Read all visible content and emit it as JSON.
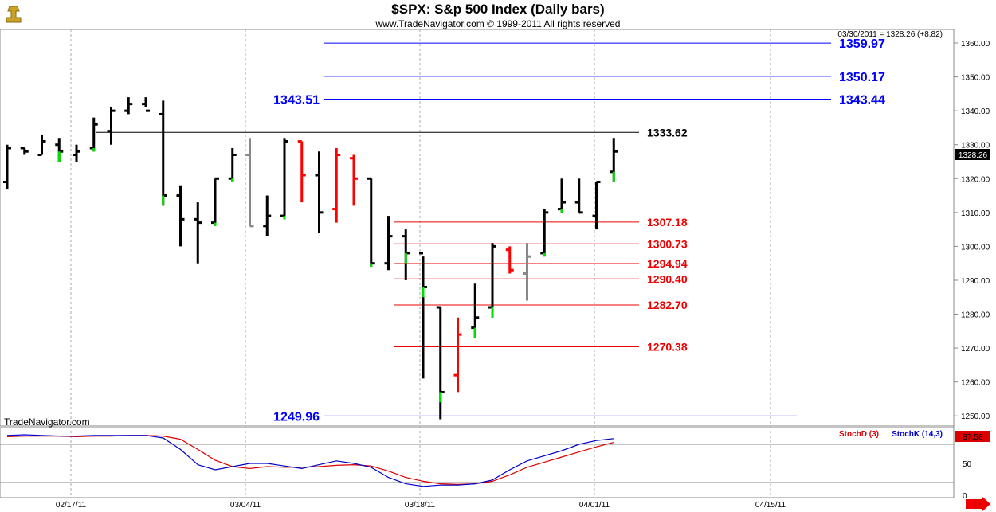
{
  "header": {
    "title": "$SPX:  S&p 500 Index  (Daily bars)",
    "copyright": "www.TradeNavigator.com © 1999-2011 All rights reserved",
    "quote": "03/30/2011 = 1328.26 (+8.82)",
    "watermark": "TradeNavigator.com",
    "last_price": "1328.26"
  },
  "colors": {
    "up": "#000000",
    "down": "#ff0000",
    "green": "#00e000",
    "gray": "#888888",
    "blue": "#0000ff",
    "red": "#ee0000",
    "grid": "#aaaaaa",
    "stochD": "#dd0000",
    "stochK": "#0000cc"
  },
  "chart_data": {
    "type": "ohlc",
    "y_ticks": [
      "1250.00",
      "1260.00",
      "1270.00",
      "1280.00",
      "1290.00",
      "1300.00",
      "1310.00",
      "1320.00",
      "1330.00",
      "1340.00",
      "1350.00",
      "1360.00"
    ],
    "ylim": [
      1247,
      1364
    ],
    "x_ticks": [
      "02/17/11",
      "03/04/11",
      "03/18/11",
      "04/01/11",
      "04/15/11"
    ],
    "bars": [
      {
        "o": 1319,
        "h": 1330,
        "l": 1317,
        "c": 1329,
        "col": "up"
      },
      {
        "o": 1329,
        "h": 1329,
        "l": 1327,
        "c": 1328,
        "col": "up"
      },
      {
        "o": 1327,
        "h": 1333,
        "l": 1327,
        "c": 1331,
        "col": "up"
      },
      {
        "o": 1330,
        "h": 1332,
        "l": 1325,
        "c": 1328,
        "col": "green"
      },
      {
        "o": 1327,
        "h": 1330,
        "l": 1325,
        "c": 1328,
        "col": "up"
      },
      {
        "o": 1329,
        "h": 1338,
        "l": 1328,
        "c": 1336,
        "col": "green"
      },
      {
        "o": 1334,
        "h": 1341,
        "l": 1330,
        "c": 1340,
        "col": "up"
      },
      {
        "o": 1340,
        "h": 1344,
        "l": 1339,
        "c": 1342,
        "col": "up"
      },
      {
        "o": 1342,
        "h": 1344,
        "l": 1341,
        "c": 1340,
        "col": "up"
      },
      {
        "o": 1339,
        "h": 1343,
        "l": 1312,
        "c": 1315,
        "col": "green"
      },
      {
        "o": 1315,
        "h": 1318,
        "l": 1300,
        "c": 1308,
        "col": "up"
      },
      {
        "o": 1308,
        "h": 1313,
        "l": 1295,
        "c": 1307,
        "col": "up"
      },
      {
        "o": 1307,
        "h": 1320,
        "l": 1306,
        "c": 1320,
        "col": "green"
      },
      {
        "o": 1320,
        "h": 1329,
        "l": 1319,
        "c": 1327,
        "col": "green"
      },
      {
        "o": 1327,
        "h": 1332,
        "l": 1306,
        "c": 1306,
        "col": "gray"
      },
      {
        "o": 1306,
        "h": 1315,
        "l": 1303,
        "c": 1309,
        "col": "up"
      },
      {
        "o": 1309,
        "h": 1332,
        "l": 1308,
        "c": 1331,
        "col": "green"
      },
      {
        "o": 1331,
        "h": 1331,
        "l": 1313,
        "c": 1321,
        "col": "down"
      },
      {
        "o": 1321,
        "h": 1328,
        "l": 1304,
        "c": 1310,
        "col": "up"
      },
      {
        "o": 1311,
        "h": 1329,
        "l": 1307,
        "c": 1327,
        "col": "down"
      },
      {
        "o": 1326,
        "h": 1327,
        "l": 1312,
        "c": 1320,
        "col": "down"
      },
      {
        "o": 1320,
        "h": 1320,
        "l": 1294,
        "c": 1295,
        "col": "green"
      },
      {
        "o": 1295,
        "h": 1309,
        "l": 1293,
        "c": 1303,
        "col": "up"
      },
      {
        "o": 1303,
        "h": 1305,
        "l": 1290,
        "c": 1298,
        "col": "green"
      },
      {
        "o": 1298,
        "h": 1297,
        "l": 1261,
        "c": 1288,
        "col": "green"
      },
      {
        "o": 1282,
        "h": 1282,
        "l": 1249,
        "c": 1257,
        "col": "green"
      },
      {
        "o": 1262,
        "h": 1279,
        "l": 1257,
        "c": 1274,
        "col": "down"
      },
      {
        "o": 1276,
        "h": 1289,
        "l": 1273,
        "c": 1279,
        "col": "green"
      },
      {
        "o": 1282,
        "h": 1301,
        "l": 1279,
        "c": 1300,
        "col": "green"
      },
      {
        "o": 1299,
        "h": 1300,
        "l": 1292,
        "c": 1293,
        "col": "down"
      },
      {
        "o": 1292,
        "h": 1301,
        "l": 1284,
        "c": 1297,
        "col": "gray"
      },
      {
        "o": 1298,
        "h": 1311,
        "l": 1297,
        "c": 1310,
        "col": "green"
      },
      {
        "o": 1311,
        "h": 1320,
        "l": 1310,
        "c": 1313,
        "col": "green"
      },
      {
        "o": 1313,
        "h": 1320,
        "l": 1310,
        "c": 1310,
        "col": "up"
      },
      {
        "o": 1309,
        "h": 1319,
        "l": 1305,
        "c": 1319,
        "col": "up"
      },
      {
        "o": 1322,
        "h": 1332,
        "l": 1319,
        "c": 1328,
        "col": "green"
      }
    ],
    "levels": [
      {
        "value": 1359.97,
        "label": "1359.97",
        "color": "blue",
        "x0": 24,
        "x1": 44,
        "side": "right"
      },
      {
        "value": 1350.17,
        "label": "1350.17",
        "color": "blue",
        "x0": 24,
        "x1": 44,
        "side": "right"
      },
      {
        "value": 1343.44,
        "label": "1343.44",
        "color": "blue",
        "x0": 24,
        "x1": 44,
        "side": "right",
        "left_label": "1343.51"
      },
      {
        "value": 1333.62,
        "label": "1333.62",
        "color": "black",
        "x0": 6,
        "x1": 37,
        "side": "right"
      },
      {
        "value": 1307.18,
        "label": "1307.18",
        "color": "red",
        "x0": 29,
        "x1": 37,
        "side": "right"
      },
      {
        "value": 1300.73,
        "label": "1300.73",
        "color": "red",
        "x0": 29,
        "x1": 37,
        "side": "right"
      },
      {
        "value": 1294.94,
        "label": "1294.94",
        "color": "red",
        "x0": 29,
        "x1": 37,
        "side": "right"
      },
      {
        "value": 1290.4,
        "label": "1290.40",
        "color": "red",
        "x0": 29,
        "x1": 37,
        "side": "right"
      },
      {
        "value": 1282.7,
        "label": "1282.70",
        "color": "red",
        "x0": 29,
        "x1": 37,
        "side": "right"
      },
      {
        "value": 1270.38,
        "label": "1270.38",
        "color": "red",
        "x0": 29,
        "x1": 37,
        "side": "right"
      },
      {
        "value": 1249.96,
        "label": "1249.96",
        "color": "blue",
        "x0": 24,
        "x1": 58,
        "side": "left"
      }
    ],
    "stoch": {
      "labelD": "StochD (3)",
      "labelK": "StochK (14,3)",
      "last": "87.58",
      "ticks": [
        "50",
        "0"
      ],
      "stochD": [
        92,
        93,
        93,
        93,
        92,
        93,
        93,
        94,
        94,
        93,
        88,
        72,
        55,
        45,
        42,
        45,
        44,
        44,
        45,
        47,
        48,
        46,
        38,
        28,
        22,
        18,
        17,
        18,
        22,
        32,
        44,
        52,
        60,
        68,
        76,
        83
      ],
      "stochK": [
        94,
        95,
        94,
        93,
        93,
        94,
        94,
        94,
        94,
        90,
        72,
        48,
        40,
        45,
        50,
        50,
        46,
        42,
        48,
        54,
        50,
        44,
        28,
        18,
        14,
        16,
        16,
        18,
        24,
        40,
        54,
        62,
        70,
        80,
        86,
        89
      ]
    }
  }
}
